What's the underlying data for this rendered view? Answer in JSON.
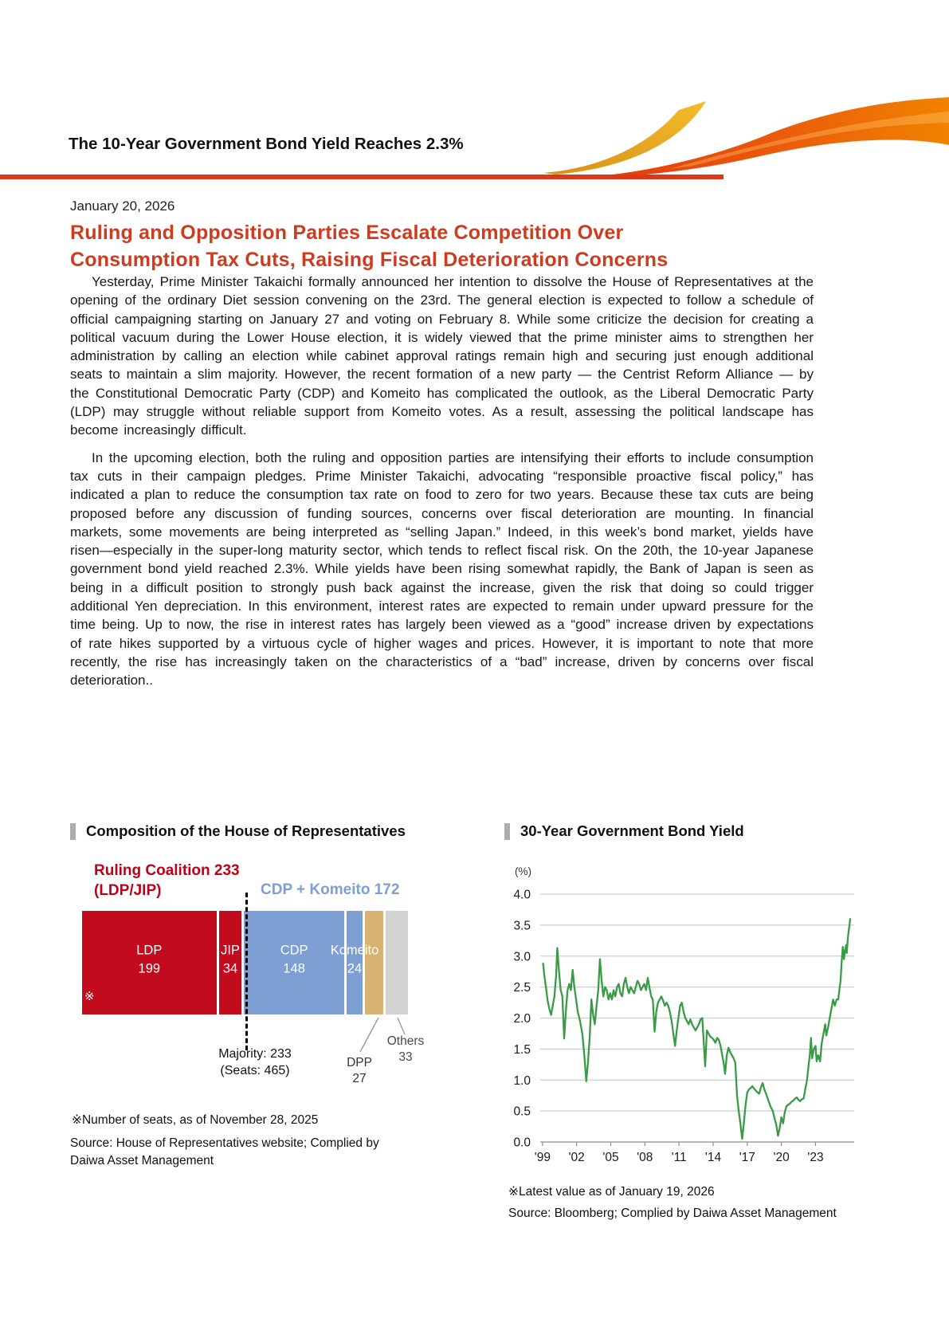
{
  "page": {
    "banner_title": "The 10-Year Government Bond Yield Reaches 2.3%",
    "date": "January 20, 2026",
    "headline_line1": "Ruling and Opposition Parties Escalate Competition Over",
    "headline_line2": "Consumption Tax Cuts, Raising Fiscal Deterioration Concerns",
    "paragraph1": "Yesterday, Prime Minister Takaichi formally announced her intention to dissolve the House of Representatives at the opening of the ordinary Diet session convening on the 23rd. The general election is expected to follow a schedule of official campaigning starting on January 27 and voting on February 8. While some criticize the decision for creating a political vacuum during the Lower House election, it is widely viewed that the prime minister aims to strengthen her administration by calling an election while cabinet approval ratings remain high and securing just enough additional seats to maintain a slim majority. However, the recent formation of a new party — the Centrist Reform Alliance — by the Constitutional Democratic Party (CDP) and Komeito has complicated the outlook, as the Liberal Democratic Party (LDP) may struggle without reliable support from Komeito votes. As a result, assessing the political landscape has become increasingly difficult.",
    "paragraph2": "In the upcoming election, both the ruling and opposition parties are intensifying their efforts to include consumption tax cuts in their campaign pledges. Prime Minister Takaichi, advocating “responsible proactive fiscal policy,” has indicated a plan to reduce the consumption tax rate on food to zero for two years. Because these tax cuts are being proposed before any discussion of funding sources, concerns over fiscal deterioration are mounting. In financial markets, some movements are being interpreted as “selling Japan.” Indeed, in this week’s bond market, yields have risen—especially in the super-long maturity sector, which tends to reflect fiscal risk. On the 20th, the 10-year Japanese government bond yield reached 2.3%. While yields have been rising somewhat rapidly, the Bank of Japan is seen as being in a difficult position to strongly push back against the increase, given the risk that doing so could trigger additional Yen depreciation. In this environment, interest rates are expected to remain under upward pressure for the time being. Up to now, the rise in interest rates has largely been viewed as a “good” increase driven by expectations of rate hikes supported by a virtuous cycle of higher wages and prices. However, it is important to note that more recently, the rise has increasingly taken on the characteristics of a “bad” increase, driven by concerns over fiscal deterioration.."
  },
  "seat_chart": {
    "section_title": "Composition of the House of Representatives",
    "ruling_label_line1": "Ruling Coalition 233",
    "ruling_label_line2": "(LDP/JIP)",
    "opposition_label": "CDP + Komeito 172",
    "bar_footnote_mark": "※",
    "majority_label_line1": "Majority: 233",
    "majority_label_line2": "(Seats: 465)",
    "footnote": "※Number of seats, as of November 28, 2025",
    "source_line1": "Source: House of Representatives website; Complied by",
    "source_line2": "Daiwa Asset Management"
  },
  "yield_chart": {
    "section_title": "30-Year Government Bond Yield",
    "unit_label": "(%)",
    "footnote": "※Latest value as of January 19, 2026",
    "source": "Source: Bloomberg; Complied by Daiwa Asset Management"
  },
  "colors": {
    "header_rule_red": "#DC3918",
    "headline_red": "#CE3B1E",
    "ruling_text_red": "#C00014",
    "coalition_text_blue": "#7E9FD4",
    "bar_red": "#C30B1E",
    "bar_blue": "#7E9FD4",
    "bar_tan": "#D6B273",
    "bar_gray": "#D2D2D2",
    "line_green": "#3A9B46",
    "swoosh_gold_dark": "#D89018",
    "swoosh_gold_light": "#F4BC2B",
    "swoosh_red": "#E2340D",
    "swoosh_orange": "#F08300",
    "section_marker_gray": "#ADADAD"
  },
  "chart_data": [
    {
      "type": "bar",
      "subtype": "stacked-horizontal",
      "title": "Composition of the House of Representatives",
      "total_seats": 465,
      "majority": 233,
      "groups": [
        {
          "label": "Ruling Coalition (LDP/JIP)",
          "seats": 233
        },
        {
          "label": "CDP + Komeito",
          "seats": 172
        }
      ],
      "segments": [
        {
          "name": "LDP",
          "seats": 199,
          "color": "#C30B1E",
          "label_inside": true
        },
        {
          "name": "JIP",
          "seats": 34,
          "color": "#C30B1E",
          "label_inside": true
        },
        {
          "name": "CDP",
          "seats": 148,
          "color": "#7E9FD4",
          "label_inside": true
        },
        {
          "name": "Komeito",
          "seats": 24,
          "color": "#7E9FD4",
          "label_inside": true
        },
        {
          "name": "DPP",
          "seats": 27,
          "color": "#D6B273",
          "label_inside": false
        },
        {
          "name": "Others",
          "seats": 33,
          "color": "#D2D2D2",
          "label_inside": false
        }
      ]
    },
    {
      "type": "line",
      "title": "30-Year Government Bond Yield",
      "ylabel": "(%)",
      "ylim": [
        0.0,
        4.0
      ],
      "yticks": [
        4.0,
        3.5,
        3.0,
        2.5,
        2.0,
        1.5,
        1.0,
        0.5,
        0.0
      ],
      "xlim": [
        1998.8,
        2026.4
      ],
      "xtick_years": [
        1999,
        2002,
        2005,
        2008,
        2011,
        2014,
        2017,
        2020,
        2023
      ],
      "xtick_labels": [
        "'99",
        "'02",
        "'05",
        "'08",
        "'11",
        "'14",
        "'17",
        "'20",
        "'23"
      ],
      "grid": true,
      "legend": "none",
      "line_color": "#3A9B46",
      "series": [
        {
          "name": "30-Year Government Bond Yield",
          "points": [
            [
              1999.05,
              2.88
            ],
            [
              1999.15,
              2.7
            ],
            [
              1999.3,
              2.5
            ],
            [
              1999.45,
              2.28
            ],
            [
              1999.6,
              2.15
            ],
            [
              1999.75,
              2.05
            ],
            [
              1999.9,
              2.2
            ],
            [
              2000.05,
              2.35
            ],
            [
              2000.2,
              2.7
            ],
            [
              2000.3,
              3.13
            ],
            [
              2000.45,
              2.75
            ],
            [
              2000.6,
              2.45
            ],
            [
              2000.75,
              2.35
            ],
            [
              2000.9,
              1.67
            ],
            [
              2001.05,
              2.1
            ],
            [
              2001.2,
              2.45
            ],
            [
              2001.35,
              2.55
            ],
            [
              2001.5,
              2.45
            ],
            [
              2001.65,
              2.78
            ],
            [
              2001.8,
              2.5
            ],
            [
              2001.95,
              2.3
            ],
            [
              2002.1,
              2.1
            ],
            [
              2002.3,
              1.95
            ],
            [
              2002.5,
              1.75
            ],
            [
              2002.65,
              1.45
            ],
            [
              2002.85,
              0.98
            ],
            [
              2003.0,
              1.3
            ],
            [
              2003.15,
              1.7
            ],
            [
              2003.3,
              2.3
            ],
            [
              2003.45,
              2.05
            ],
            [
              2003.6,
              1.9
            ],
            [
              2003.75,
              2.2
            ],
            [
              2003.9,
              2.45
            ],
            [
              2004.05,
              2.95
            ],
            [
              2004.2,
              2.6
            ],
            [
              2004.35,
              2.35
            ],
            [
              2004.5,
              2.5
            ],
            [
              2004.65,
              2.45
            ],
            [
              2004.8,
              2.3
            ],
            [
              2004.95,
              2.4
            ],
            [
              2005.1,
              2.3
            ],
            [
              2005.25,
              2.45
            ],
            [
              2005.4,
              2.35
            ],
            [
              2005.55,
              2.5
            ],
            [
              2005.7,
              2.55
            ],
            [
              2005.85,
              2.4
            ],
            [
              2006.0,
              2.35
            ],
            [
              2006.15,
              2.55
            ],
            [
              2006.3,
              2.65
            ],
            [
              2006.45,
              2.5
            ],
            [
              2006.6,
              2.4
            ],
            [
              2006.75,
              2.5
            ],
            [
              2006.9,
              2.45
            ],
            [
              2007.05,
              2.4
            ],
            [
              2007.2,
              2.5
            ],
            [
              2007.35,
              2.6
            ],
            [
              2007.5,
              2.55
            ],
            [
              2007.65,
              2.45
            ],
            [
              2007.8,
              2.5
            ],
            [
              2007.95,
              2.55
            ],
            [
              2008.1,
              2.45
            ],
            [
              2008.25,
              2.65
            ],
            [
              2008.4,
              2.5
            ],
            [
              2008.55,
              2.35
            ],
            [
              2008.7,
              2.3
            ],
            [
              2008.85,
              1.78
            ],
            [
              2009.0,
              2.1
            ],
            [
              2009.15,
              2.25
            ],
            [
              2009.3,
              2.3
            ],
            [
              2009.45,
              2.35
            ],
            [
              2009.6,
              2.28
            ],
            [
              2009.75,
              2.2
            ],
            [
              2009.9,
              2.25
            ],
            [
              2010.05,
              2.2
            ],
            [
              2010.2,
              2.1
            ],
            [
              2010.35,
              1.95
            ],
            [
              2010.5,
              1.75
            ],
            [
              2010.65,
              1.55
            ],
            [
              2010.8,
              1.8
            ],
            [
              2010.95,
              2.0
            ],
            [
              2011.1,
              2.2
            ],
            [
              2011.25,
              2.25
            ],
            [
              2011.4,
              2.1
            ],
            [
              2011.55,
              2.0
            ],
            [
              2011.7,
              1.95
            ],
            [
              2011.85,
              1.9
            ],
            [
              2012.0,
              1.98
            ],
            [
              2012.15,
              1.9
            ],
            [
              2012.3,
              1.85
            ],
            [
              2012.45,
              1.8
            ],
            [
              2012.6,
              1.85
            ],
            [
              2012.75,
              1.9
            ],
            [
              2012.9,
              1.98
            ],
            [
              2013.05,
              2.0
            ],
            [
              2013.3,
              1.22
            ],
            [
              2013.45,
              1.8
            ],
            [
              2013.6,
              1.75
            ],
            [
              2013.75,
              1.7
            ],
            [
              2013.9,
              1.68
            ],
            [
              2014.05,
              1.65
            ],
            [
              2014.2,
              1.6
            ],
            [
              2014.35,
              1.68
            ],
            [
              2014.5,
              1.65
            ],
            [
              2014.65,
              1.55
            ],
            [
              2014.8,
              1.4
            ],
            [
              2014.95,
              1.25
            ],
            [
              2015.05,
              1.1
            ],
            [
              2015.2,
              1.4
            ],
            [
              2015.35,
              1.52
            ],
            [
              2015.5,
              1.45
            ],
            [
              2015.65,
              1.4
            ],
            [
              2015.8,
              1.35
            ],
            [
              2015.95,
              1.28
            ],
            [
              2016.1,
              0.75
            ],
            [
              2016.25,
              0.5
            ],
            [
              2016.4,
              0.3
            ],
            [
              2016.55,
              0.05
            ],
            [
              2016.7,
              0.3
            ],
            [
              2016.85,
              0.6
            ],
            [
              2017.0,
              0.8
            ],
            [
              2017.15,
              0.85
            ],
            [
              2017.3,
              0.87
            ],
            [
              2017.45,
              0.9
            ],
            [
              2017.6,
              0.86
            ],
            [
              2017.75,
              0.83
            ],
            [
              2017.9,
              0.8
            ],
            [
              2018.05,
              0.78
            ],
            [
              2018.2,
              0.88
            ],
            [
              2018.35,
              0.95
            ],
            [
              2018.5,
              0.85
            ],
            [
              2018.65,
              0.78
            ],
            [
              2018.8,
              0.7
            ],
            [
              2018.95,
              0.62
            ],
            [
              2019.1,
              0.55
            ],
            [
              2019.25,
              0.5
            ],
            [
              2019.4,
              0.38
            ],
            [
              2019.55,
              0.28
            ],
            [
              2019.7,
              0.1
            ],
            [
              2019.85,
              0.22
            ],
            [
              2020.0,
              0.4
            ],
            [
              2020.15,
              0.3
            ],
            [
              2020.3,
              0.48
            ],
            [
              2020.45,
              0.58
            ],
            [
              2020.6,
              0.6
            ],
            [
              2020.75,
              0.62
            ],
            [
              2020.9,
              0.65
            ],
            [
              2021.05,
              0.67
            ],
            [
              2021.2,
              0.7
            ],
            [
              2021.35,
              0.72
            ],
            [
              2021.5,
              0.68
            ],
            [
              2021.65,
              0.66
            ],
            [
              2021.8,
              0.69
            ],
            [
              2021.95,
              0.7
            ],
            [
              2022.1,
              0.85
            ],
            [
              2022.25,
              1.0
            ],
            [
              2022.4,
              1.25
            ],
            [
              2022.5,
              1.4
            ],
            [
              2022.6,
              1.68
            ],
            [
              2022.7,
              1.35
            ],
            [
              2022.85,
              1.5
            ],
            [
              2023.0,
              1.55
            ],
            [
              2023.1,
              1.3
            ],
            [
              2023.25,
              1.4
            ],
            [
              2023.4,
              1.3
            ],
            [
              2023.55,
              1.6
            ],
            [
              2023.7,
              1.75
            ],
            [
              2023.85,
              1.9
            ],
            [
              2023.95,
              1.72
            ],
            [
              2024.1,
              1.85
            ],
            [
              2024.25,
              2.0
            ],
            [
              2024.4,
              2.15
            ],
            [
              2024.55,
              2.3
            ],
            [
              2024.7,
              2.2
            ],
            [
              2024.85,
              2.3
            ],
            [
              2025.0,
              2.3
            ],
            [
              2025.1,
              2.45
            ],
            [
              2025.2,
              2.6
            ],
            [
              2025.3,
              2.9
            ],
            [
              2025.4,
              3.15
            ],
            [
              2025.5,
              2.95
            ],
            [
              2025.6,
              3.1
            ],
            [
              2025.7,
              3.18
            ],
            [
              2025.75,
              3.05
            ],
            [
              2025.85,
              3.3
            ],
            [
              2025.95,
              3.45
            ],
            [
              2026.05,
              3.6
            ]
          ]
        }
      ]
    }
  ]
}
